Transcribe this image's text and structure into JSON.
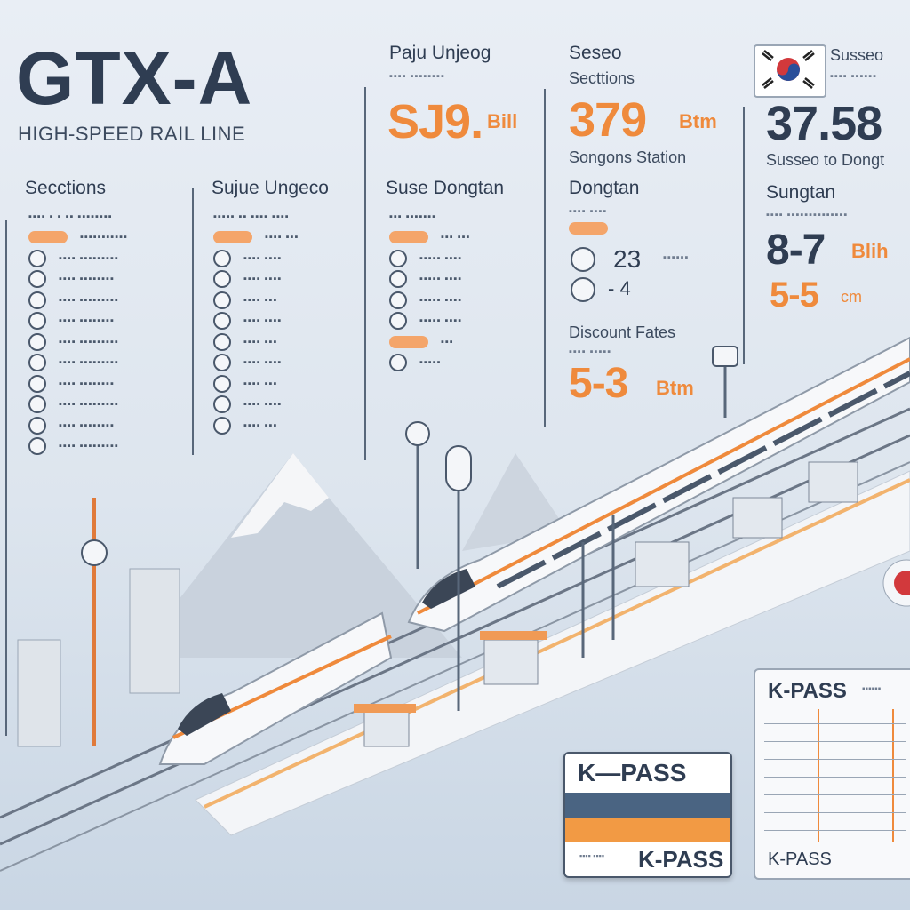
{
  "title": "GTX-A",
  "subtitle": "HIGH-SPEED RAIL LINE",
  "columns": {
    "sections_header": "Secctions",
    "sujue_header": "Sujue Ungeco",
    "suse_header": "Suse Dongtan"
  },
  "top": {
    "paju": {
      "header": "Paju Unjeog",
      "fare": "SJ9.",
      "unit": "Bill"
    },
    "seseo": {
      "header": "Seseo",
      "sub": "Secttions",
      "fare": "379",
      "unit": "Btm",
      "station": "Songons Station"
    },
    "suseo": {
      "header": "Susseo",
      "fare": "37.58",
      "route": "Susseo to Dongt"
    }
  },
  "dongtan": {
    "header": "Dongtan",
    "value1": "23",
    "value2": "- 4"
  },
  "sungtan": {
    "header": "Sungtan",
    "value1": "8-7",
    "unit1": "Blih",
    "value2": "5-5",
    "unit2": "cm"
  },
  "discount": {
    "header": "Discount Fates",
    "value": "5-3",
    "unit": "Btm"
  },
  "kpass": {
    "card_top": "K—PASS",
    "card_bottom": "K-PASS",
    "panel_title": "K-PASS",
    "panel_footer": "K-PASS"
  },
  "colors": {
    "accent": "#ef8a3c",
    "text": "#2f3d52",
    "flag_red": "#d2393c",
    "flag_blue": "#2a4f9a"
  }
}
